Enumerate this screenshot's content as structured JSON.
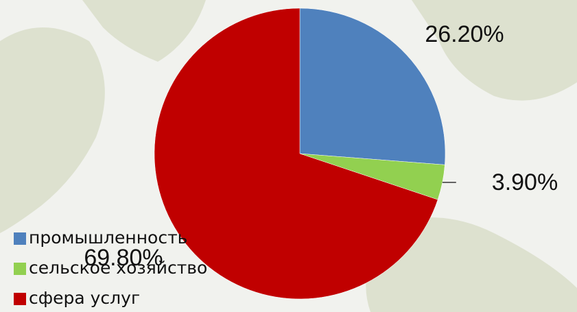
{
  "chart_data": {
    "type": "pie",
    "categories": [
      "промышленность",
      "сельское хозяйство",
      "сфера услуг"
    ],
    "values": [
      26.2,
      3.9,
      69.8
    ],
    "value_labels": [
      "26.20%",
      "3.90%",
      "69.80%"
    ],
    "colors": [
      "#4f81bd",
      "#92d050",
      "#c00000"
    ],
    "legend": "bottom-left"
  }
}
